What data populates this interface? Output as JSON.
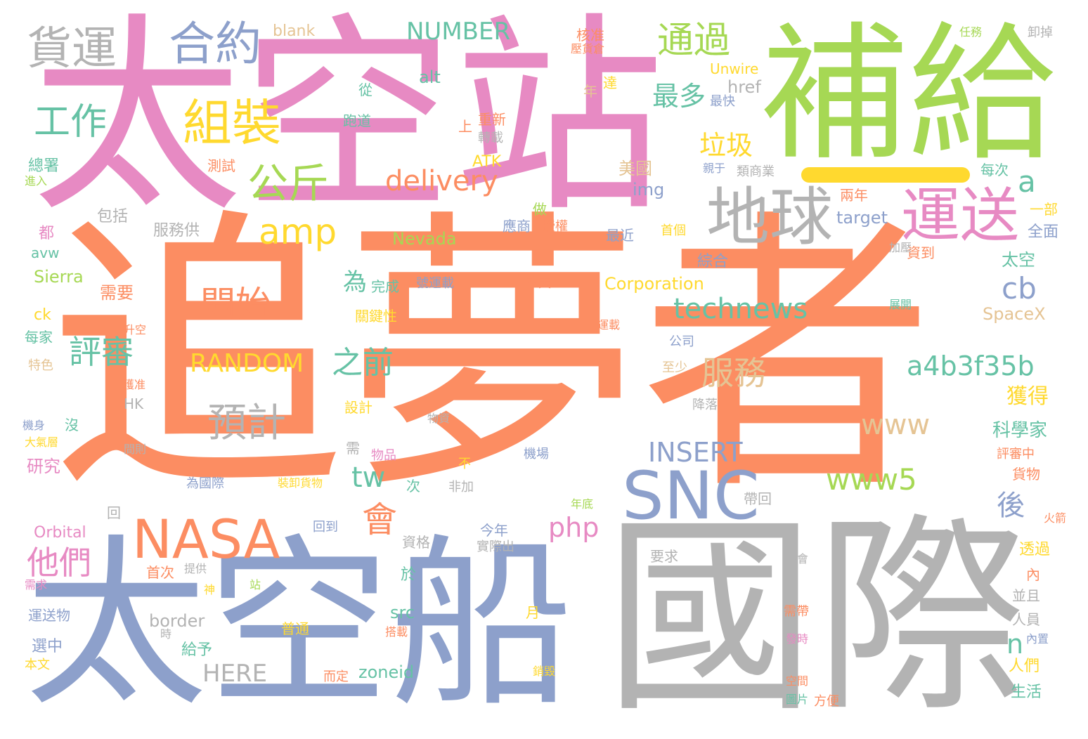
{
  "palette": {
    "orange": "#fc8d62",
    "pink": "#e78ac3",
    "green": "#a6d854",
    "blue": "#8da0cb",
    "grey": "#b3b3b3",
    "yellow": "#ffd92f",
    "teal": "#66c2a5",
    "tan": "#e5c494"
  },
  "words": [
    {
      "text": "追夢者",
      "color": "orange"
    },
    {
      "text": "太空站",
      "color": "pink"
    },
    {
      "text": "補給",
      "color": "green"
    },
    {
      "text": "國際",
      "color": "grey"
    },
    {
      "text": "太空船",
      "color": "blue"
    },
    {
      "text": "SNC",
      "color": "blue"
    },
    {
      "text": "NASA",
      "color": "orange"
    },
    {
      "text": "地球",
      "color": "grey"
    },
    {
      "text": "運送",
      "color": "pink"
    },
    {
      "text": "組裝",
      "color": "yellow"
    },
    {
      "text": "合約",
      "color": "blue"
    },
    {
      "text": "貨運",
      "color": "grey"
    },
    {
      "text": "通過",
      "color": "green"
    },
    {
      "text": "工作",
      "color": "teal"
    },
    {
      "text": "公斤",
      "color": "green"
    },
    {
      "text": "amp",
      "color": "yellow"
    },
    {
      "text": "delivery",
      "color": "orange"
    },
    {
      "text": "technews",
      "color": "teal"
    },
    {
      "text": "開始",
      "color": "orange"
    },
    {
      "text": "預計",
      "color": "grey"
    },
    {
      "text": "RANDOM",
      "color": "yellow"
    },
    {
      "text": "服務",
      "color": "tan"
    },
    {
      "text": "之前",
      "color": "teal"
    },
    {
      "text": "a4b3f35b",
      "color": "teal"
    },
    {
      "text": "www5",
      "color": "green"
    },
    {
      "text": "www",
      "color": "tan"
    },
    {
      "text": "INSERT",
      "color": "blue"
    },
    {
      "text": "tw",
      "color": "teal"
    },
    {
      "text": "會",
      "color": "orange"
    },
    {
      "text": "他們",
      "color": "pink"
    },
    {
      "text": "php",
      "color": "pink"
    },
    {
      "text": "評審",
      "color": "teal"
    },
    {
      "text": "最多",
      "color": "teal"
    },
    {
      "text": "垃圾",
      "color": "yellow"
    },
    {
      "text": "NUMBER",
      "color": "teal"
    },
    {
      "text": "為",
      "color": "teal"
    },
    {
      "text": "cb",
      "color": "blue"
    },
    {
      "text": "a",
      "color": "teal"
    },
    {
      "text": "後",
      "color": "blue"
    },
    {
      "text": "獲得",
      "color": "yellow"
    },
    {
      "text": "科學家",
      "color": "teal"
    },
    {
      "text": "HERE",
      "color": "grey"
    },
    {
      "text": "n",
      "color": "teal"
    },
    {
      "text": "blank",
      "color": "tan"
    },
    {
      "text": "alt",
      "color": "teal"
    },
    {
      "text": "href",
      "color": "grey"
    },
    {
      "text": "Unwire",
      "color": "yellow"
    },
    {
      "text": "美國",
      "color": "tan"
    },
    {
      "text": "img",
      "color": "blue"
    },
    {
      "text": "target",
      "color": "blue"
    },
    {
      "text": "Nevada",
      "color": "green"
    },
    {
      "text": "Corporation",
      "color": "yellow"
    },
    {
      "text": "Sierra",
      "color": "green"
    },
    {
      "text": "SpaceX",
      "color": "tan"
    },
    {
      "text": "Orbital",
      "color": "pink"
    },
    {
      "text": "border",
      "color": "grey"
    },
    {
      "text": "zoneid",
      "color": "teal"
    },
    {
      "text": "src",
      "color": "teal"
    },
    {
      "text": "ATK",
      "color": "yellow"
    },
    {
      "text": "avw",
      "color": "teal"
    },
    {
      "text": "ck",
      "color": "yellow"
    },
    {
      "text": "HK",
      "color": "grey"
    },
    {
      "text": "核准",
      "color": "orange"
    },
    {
      "text": "從",
      "color": "teal"
    },
    {
      "text": "跑道",
      "color": "teal"
    },
    {
      "text": "年",
      "color": "tan"
    },
    {
      "text": "達",
      "color": "yellow"
    },
    {
      "text": "上",
      "color": "orange"
    },
    {
      "text": "重新",
      "color": "orange"
    },
    {
      "text": "轉載",
      "color": "grey"
    },
    {
      "text": "測試",
      "color": "orange"
    },
    {
      "text": "總署",
      "color": "teal"
    },
    {
      "text": "進入",
      "color": "green"
    },
    {
      "text": "包括",
      "color": "grey"
    },
    {
      "text": "服務供",
      "color": "grey"
    },
    {
      "text": "都",
      "color": "pink"
    },
    {
      "text": "需要",
      "color": "orange"
    },
    {
      "text": "完成",
      "color": "teal"
    },
    {
      "text": "號運載",
      "color": "blue"
    },
    {
      "text": "關鍵性",
      "color": "yellow"
    },
    {
      "text": "擎天",
      "color": "orange"
    },
    {
      "text": "綜合",
      "color": "blue"
    },
    {
      "text": "資到",
      "color": "orange"
    },
    {
      "text": "太空",
      "color": "teal"
    },
    {
      "text": "全面",
      "color": "blue"
    },
    {
      "text": "一部",
      "color": "yellow"
    },
    {
      "text": "兩年",
      "color": "orange"
    },
    {
      "text": "每次",
      "color": "teal"
    },
    {
      "text": "類商業",
      "color": "grey"
    },
    {
      "text": "親于",
      "color": "blue"
    },
    {
      "text": "最近",
      "color": "blue"
    },
    {
      "text": "首個",
      "color": "yellow"
    },
    {
      "text": "應商",
      "color": "blue"
    },
    {
      "text": "授權",
      "color": "orange"
    },
    {
      "text": "做",
      "color": "green"
    },
    {
      "text": "最快",
      "color": "blue"
    },
    {
      "text": "任務",
      "color": "green"
    },
    {
      "text": "卸掉",
      "color": "grey"
    },
    {
      "text": "加壓",
      "color": "grey"
    },
    {
      "text": "展開",
      "color": "teal"
    },
    {
      "text": "運載",
      "color": "orange"
    },
    {
      "text": "公司",
      "color": "blue"
    },
    {
      "text": "至少",
      "color": "tan"
    },
    {
      "text": "降落",
      "color": "grey"
    },
    {
      "text": "升空",
      "color": "orange"
    },
    {
      "text": "每家",
      "color": "teal"
    },
    {
      "text": "特色",
      "color": "tan"
    },
    {
      "text": "獲准",
      "color": "orange"
    },
    {
      "text": "設計",
      "color": "yellow"
    },
    {
      "text": "物資",
      "color": "grey"
    },
    {
      "text": "沒",
      "color": "teal"
    },
    {
      "text": "機身",
      "color": "blue"
    },
    {
      "text": "大氣層",
      "color": "yellow"
    },
    {
      "text": "間則",
      "color": "grey"
    },
    {
      "text": "研究",
      "color": "pink"
    },
    {
      "text": "需",
      "color": "grey"
    },
    {
      "text": "物品",
      "color": "pink"
    },
    {
      "text": "不",
      "color": "yellow"
    },
    {
      "text": "機場",
      "color": "blue"
    },
    {
      "text": "為國際",
      "color": "blue"
    },
    {
      "text": "裝卸貨物",
      "color": "yellow"
    },
    {
      "text": "次",
      "color": "teal"
    },
    {
      "text": "非加",
      "color": "grey"
    },
    {
      "text": "年底",
      "color": "green"
    },
    {
      "text": "帶回",
      "color": "grey"
    },
    {
      "text": "評審中",
      "color": "orange"
    },
    {
      "text": "貨物",
      "color": "orange"
    },
    {
      "text": "火箭",
      "color": "orange"
    },
    {
      "text": "回",
      "color": "grey"
    },
    {
      "text": "回到",
      "color": "blue"
    },
    {
      "text": "今年",
      "color": "blue"
    },
    {
      "text": "資格",
      "color": "grey"
    },
    {
      "text": "實際出",
      "color": "grey"
    },
    {
      "text": "透過",
      "color": "yellow"
    },
    {
      "text": "內",
      "color": "orange"
    },
    {
      "text": "首次",
      "color": "orange"
    },
    {
      "text": "提供",
      "color": "grey"
    },
    {
      "text": "要求",
      "color": "grey"
    },
    {
      "text": "並會",
      "color": "grey"
    },
    {
      "text": "站",
      "color": "green"
    },
    {
      "text": "神",
      "color": "yellow"
    },
    {
      "text": "於",
      "color": "teal"
    },
    {
      "text": "並且",
      "color": "grey"
    },
    {
      "text": "需求",
      "color": "pink"
    },
    {
      "text": "運送物",
      "color": "blue"
    },
    {
      "text": "月",
      "color": "yellow"
    },
    {
      "text": "人員",
      "color": "grey"
    },
    {
      "text": "需帶",
      "color": "orange"
    },
    {
      "text": "時",
      "color": "grey"
    },
    {
      "text": "普通",
      "color": "yellow"
    },
    {
      "text": "內置",
      "color": "blue"
    },
    {
      "text": "給予",
      "color": "teal"
    },
    {
      "text": "搭載",
      "color": "orange"
    },
    {
      "text": "發時",
      "color": "pink"
    },
    {
      "text": "選中",
      "color": "blue"
    },
    {
      "text": "人們",
      "color": "yellow"
    },
    {
      "text": "本文",
      "color": "yellow"
    },
    {
      "text": "而定",
      "color": "orange"
    },
    {
      "text": "銷毀",
      "color": "yellow"
    },
    {
      "text": "空間",
      "color": "orange"
    },
    {
      "text": "生活",
      "color": "teal"
    },
    {
      "text": "圖片",
      "color": "teal"
    },
    {
      "text": "方便",
      "color": "orange"
    },
    {
      "text": "壓貨倉",
      "color": "orange"
    }
  ]
}
